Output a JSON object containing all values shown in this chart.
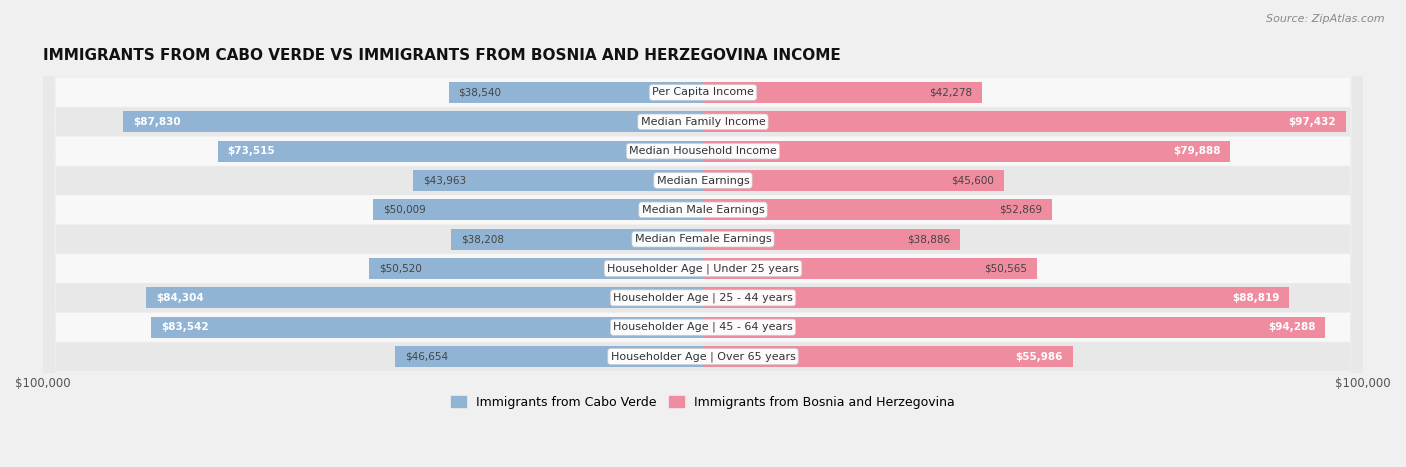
{
  "title": "IMMIGRANTS FROM CABO VERDE VS IMMIGRANTS FROM BOSNIA AND HERZEGOVINA INCOME",
  "source": "Source: ZipAtlas.com",
  "categories": [
    "Per Capita Income",
    "Median Family Income",
    "Median Household Income",
    "Median Earnings",
    "Median Male Earnings",
    "Median Female Earnings",
    "Householder Age | Under 25 years",
    "Householder Age | 25 - 44 years",
    "Householder Age | 45 - 64 years",
    "Householder Age | Over 65 years"
  ],
  "cabo_verde": [
    38540,
    87830,
    73515,
    43963,
    50009,
    38208,
    50520,
    84304,
    83542,
    46654
  ],
  "bosnia": [
    42278,
    97432,
    79888,
    45600,
    52869,
    38886,
    50565,
    88819,
    94288,
    55986
  ],
  "cabo_verde_color": "#92b4d4",
  "bosnia_color": "#f08ca0",
  "cabo_verde_label": "Immigrants from Cabo Verde",
  "bosnia_label": "Immigrants from Bosnia and Herzegovina",
  "max_val": 100000,
  "bg_color": "#f0f0f0",
  "row_bg_light": "#f8f8f8",
  "row_bg_dark": "#e8e8e8",
  "title_fontsize": 11,
  "label_fontsize": 8,
  "value_fontsize": 7.5,
  "legend_fontsize": 9,
  "source_fontsize": 8
}
